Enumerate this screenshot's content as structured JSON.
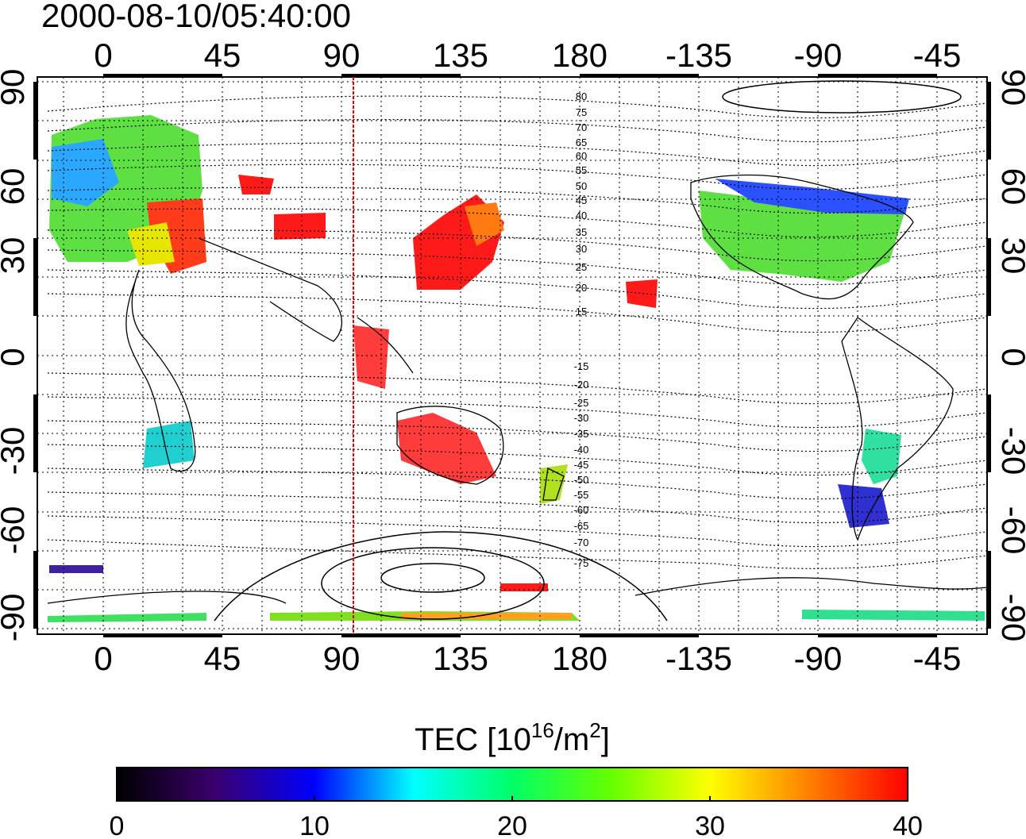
{
  "title": "2000-08-10/05:40:00",
  "map": {
    "top_longitude_labels": [
      "0",
      "45",
      "90",
      "135",
      "180",
      "-135",
      "-90",
      "-45"
    ],
    "bottom_longitude_labels": [
      "0",
      "45",
      "90",
      "135",
      "180",
      "-135",
      "-90",
      "-45"
    ],
    "left_latitude_labels": [
      "90",
      "60",
      "30",
      "0",
      "-30",
      "-60",
      "-90"
    ],
    "right_latitude_labels": [
      "90",
      "60",
      "30",
      "0",
      "-30",
      "-60",
      "-90"
    ],
    "grid": "dotted",
    "longitude_range": [
      -25,
      335
    ],
    "latitude_range": [
      -92,
      92
    ],
    "marker_longitude": 94,
    "marker_color": "#e00000",
    "contour_labels_north": [
      "80",
      "75",
      "70",
      "65",
      "60",
      "55",
      "50",
      "45",
      "40",
      "35",
      "30",
      "25",
      "20",
      "15"
    ],
    "contour_labels_south": [
      "-15",
      "-20",
      "-25",
      "-30",
      "-35",
      "-40",
      "-45",
      "-50",
      "-55",
      "-60",
      "-65",
      "-70",
      "-75"
    ]
  },
  "colorbar": {
    "label_main": "TEC  [10",
    "label_exp1": "16",
    "label_mid": "/m",
    "label_exp2": "2",
    "label_end": "]",
    "tick_labels": [
      "0",
      "10",
      "20",
      "30",
      "40"
    ],
    "range": [
      0,
      40
    ],
    "colors": [
      "#000000",
      "#3a006e",
      "#0000ff",
      "#00ffff",
      "#00ff66",
      "#66ff00",
      "#ffff00",
      "#ff8000",
      "#ff0000"
    ]
  }
}
